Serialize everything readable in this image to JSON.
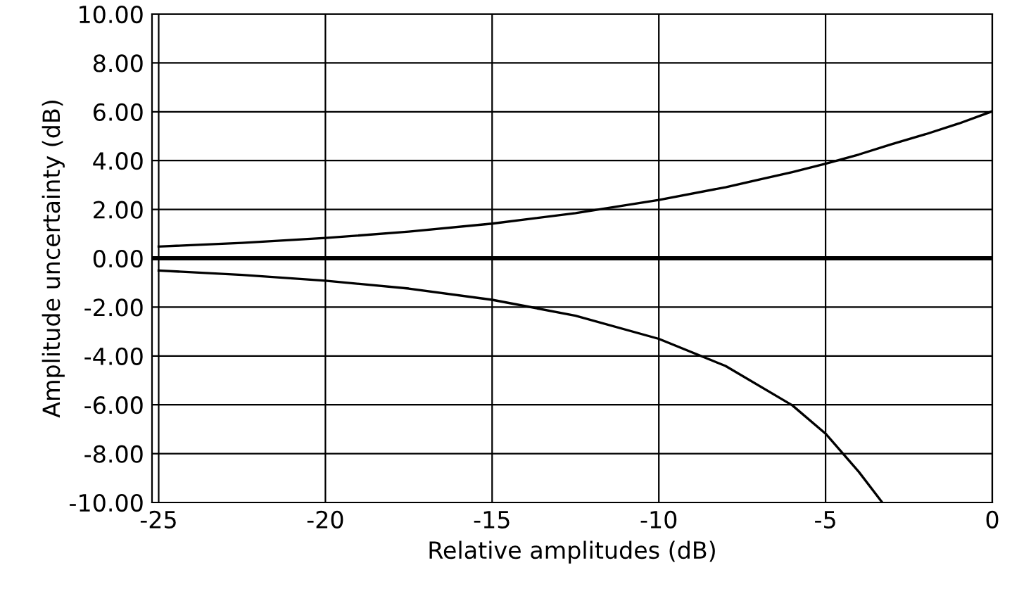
{
  "chart_data": {
    "type": "line",
    "xlabel": "Relative amplitudes (dB)",
    "ylabel": "Amplitude uncertainty (dB)",
    "series": [
      {
        "color": "#000000",
        "x": [
          -25,
          -22.5,
          -20,
          -17.5,
          -15,
          -12.5,
          -10,
          -8,
          -6,
          -5,
          -4,
          -3,
          -2,
          -1,
          0
        ],
        "values": [
          0.48,
          0.63,
          0.83,
          1.09,
          1.42,
          1.85,
          2.39,
          2.91,
          3.53,
          3.87,
          4.25,
          4.68,
          5.08,
          5.52,
          6.02
        ]
      },
      {
        "color": "#000000",
        "x": [
          -25,
          -22.5,
          -20,
          -17.5,
          -15,
          -12.5,
          -10,
          -8,
          -6,
          -5,
          -4,
          -3.3
        ],
        "values": [
          -0.5,
          -0.68,
          -0.92,
          -1.24,
          -1.7,
          -2.35,
          -3.3,
          -4.41,
          -6.02,
          -7.18,
          -8.75,
          -10.0
        ]
      }
    ],
    "xlim": [
      -25.2,
      0
    ],
    "xticks": [
      -25,
      -20,
      -15,
      -10,
      -5,
      0
    ],
    "ylim": [
      -10,
      10
    ],
    "yticks": [
      {
        "value": -10,
        "label": "-10.00"
      },
      {
        "value": -8,
        "label": "-8.00"
      },
      {
        "value": -6,
        "label": "-6.00"
      },
      {
        "value": -4,
        "label": "-4.00"
      },
      {
        "value": -2,
        "label": "-2.00"
      },
      {
        "value": 0,
        "label": "0.00"
      },
      {
        "value": 2,
        "label": "2.00"
      },
      {
        "value": 4,
        "label": "4.00"
      },
      {
        "value": 6,
        "label": "6.00"
      },
      {
        "value": 8,
        "label": "8.00"
      },
      {
        "value": 10,
        "label": "10.00"
      }
    ],
    "ref_lines": [
      {
        "axis": "y",
        "value": 0,
        "color": "#000000"
      }
    ],
    "grid": true,
    "marker": "none",
    "line_style": "solid"
  }
}
